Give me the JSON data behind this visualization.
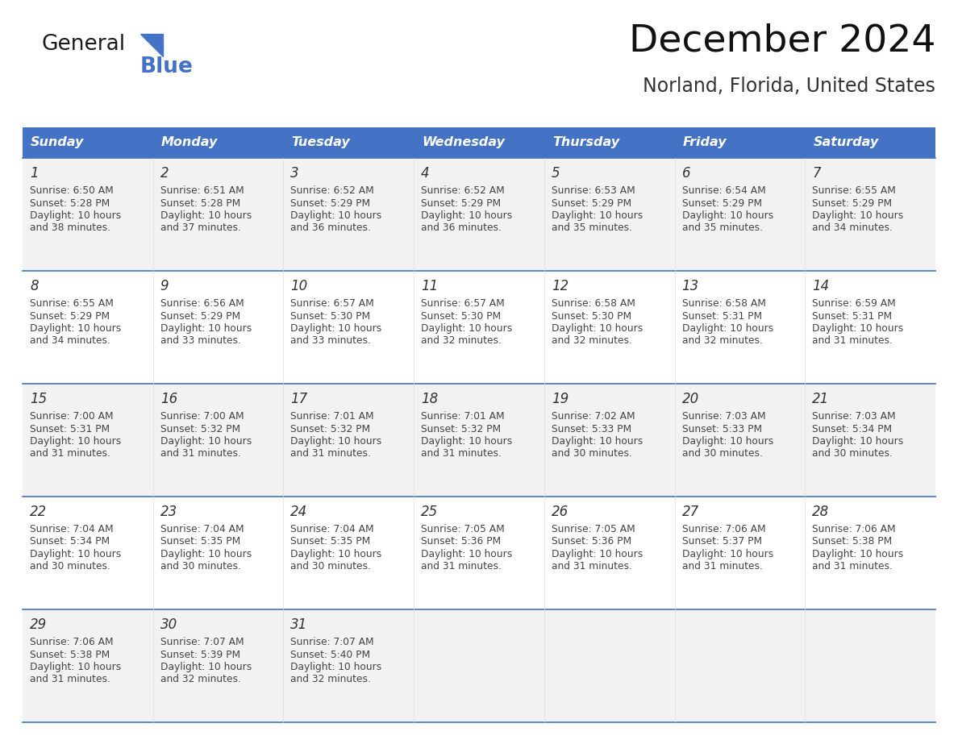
{
  "title": "December 2024",
  "subtitle": "Norland, Florida, United States",
  "header_bg_color": "#4472C4",
  "header_text_color": "#FFFFFF",
  "grid_line_color": "#4472C4",
  "day_headers": [
    "Sunday",
    "Monday",
    "Tuesday",
    "Wednesday",
    "Thursday",
    "Friday",
    "Saturday"
  ],
  "weeks": [
    [
      {
        "day": 1,
        "sunrise": "6:50 AM",
        "sunset": "5:28 PM",
        "daylight": "10 hours and 38 minutes."
      },
      {
        "day": 2,
        "sunrise": "6:51 AM",
        "sunset": "5:28 PM",
        "daylight": "10 hours and 37 minutes."
      },
      {
        "day": 3,
        "sunrise": "6:52 AM",
        "sunset": "5:29 PM",
        "daylight": "10 hours and 36 minutes."
      },
      {
        "day": 4,
        "sunrise": "6:52 AM",
        "sunset": "5:29 PM",
        "daylight": "10 hours and 36 minutes."
      },
      {
        "day": 5,
        "sunrise": "6:53 AM",
        "sunset": "5:29 PM",
        "daylight": "10 hours and 35 minutes."
      },
      {
        "day": 6,
        "sunrise": "6:54 AM",
        "sunset": "5:29 PM",
        "daylight": "10 hours and 35 minutes."
      },
      {
        "day": 7,
        "sunrise": "6:55 AM",
        "sunset": "5:29 PM",
        "daylight": "10 hours and 34 minutes."
      }
    ],
    [
      {
        "day": 8,
        "sunrise": "6:55 AM",
        "sunset": "5:29 PM",
        "daylight": "10 hours and 34 minutes."
      },
      {
        "day": 9,
        "sunrise": "6:56 AM",
        "sunset": "5:29 PM",
        "daylight": "10 hours and 33 minutes."
      },
      {
        "day": 10,
        "sunrise": "6:57 AM",
        "sunset": "5:30 PM",
        "daylight": "10 hours and 33 minutes."
      },
      {
        "day": 11,
        "sunrise": "6:57 AM",
        "sunset": "5:30 PM",
        "daylight": "10 hours and 32 minutes."
      },
      {
        "day": 12,
        "sunrise": "6:58 AM",
        "sunset": "5:30 PM",
        "daylight": "10 hours and 32 minutes."
      },
      {
        "day": 13,
        "sunrise": "6:58 AM",
        "sunset": "5:31 PM",
        "daylight": "10 hours and 32 minutes."
      },
      {
        "day": 14,
        "sunrise": "6:59 AM",
        "sunset": "5:31 PM",
        "daylight": "10 hours and 31 minutes."
      }
    ],
    [
      {
        "day": 15,
        "sunrise": "7:00 AM",
        "sunset": "5:31 PM",
        "daylight": "10 hours and 31 minutes."
      },
      {
        "day": 16,
        "sunrise": "7:00 AM",
        "sunset": "5:32 PM",
        "daylight": "10 hours and 31 minutes."
      },
      {
        "day": 17,
        "sunrise": "7:01 AM",
        "sunset": "5:32 PM",
        "daylight": "10 hours and 31 minutes."
      },
      {
        "day": 18,
        "sunrise": "7:01 AM",
        "sunset": "5:32 PM",
        "daylight": "10 hours and 31 minutes."
      },
      {
        "day": 19,
        "sunrise": "7:02 AM",
        "sunset": "5:33 PM",
        "daylight": "10 hours and 30 minutes."
      },
      {
        "day": 20,
        "sunrise": "7:03 AM",
        "sunset": "5:33 PM",
        "daylight": "10 hours and 30 minutes."
      },
      {
        "day": 21,
        "sunrise": "7:03 AM",
        "sunset": "5:34 PM",
        "daylight": "10 hours and 30 minutes."
      }
    ],
    [
      {
        "day": 22,
        "sunrise": "7:04 AM",
        "sunset": "5:34 PM",
        "daylight": "10 hours and 30 minutes."
      },
      {
        "day": 23,
        "sunrise": "7:04 AM",
        "sunset": "5:35 PM",
        "daylight": "10 hours and 30 minutes."
      },
      {
        "day": 24,
        "sunrise": "7:04 AM",
        "sunset": "5:35 PM",
        "daylight": "10 hours and 30 minutes."
      },
      {
        "day": 25,
        "sunrise": "7:05 AM",
        "sunset": "5:36 PM",
        "daylight": "10 hours and 31 minutes."
      },
      {
        "day": 26,
        "sunrise": "7:05 AM",
        "sunset": "5:36 PM",
        "daylight": "10 hours and 31 minutes."
      },
      {
        "day": 27,
        "sunrise": "7:06 AM",
        "sunset": "5:37 PM",
        "daylight": "10 hours and 31 minutes."
      },
      {
        "day": 28,
        "sunrise": "7:06 AM",
        "sunset": "5:38 PM",
        "daylight": "10 hours and 31 minutes."
      }
    ],
    [
      {
        "day": 29,
        "sunrise": "7:06 AM",
        "sunset": "5:38 PM",
        "daylight": "10 hours and 31 minutes."
      },
      {
        "day": 30,
        "sunrise": "7:07 AM",
        "sunset": "5:39 PM",
        "daylight": "10 hours and 32 minutes."
      },
      {
        "day": 31,
        "sunrise": "7:07 AM",
        "sunset": "5:40 PM",
        "daylight": "10 hours and 32 minutes."
      },
      null,
      null,
      null,
      null
    ]
  ],
  "logo_text1": "General",
  "logo_text2": "Blue",
  "logo_text1_color": "#1a1a1a",
  "logo_text2_color": "#4472C4",
  "logo_triangle_color": "#4472C4",
  "fig_width": 11.88,
  "fig_height": 9.18,
  "dpi": 100
}
